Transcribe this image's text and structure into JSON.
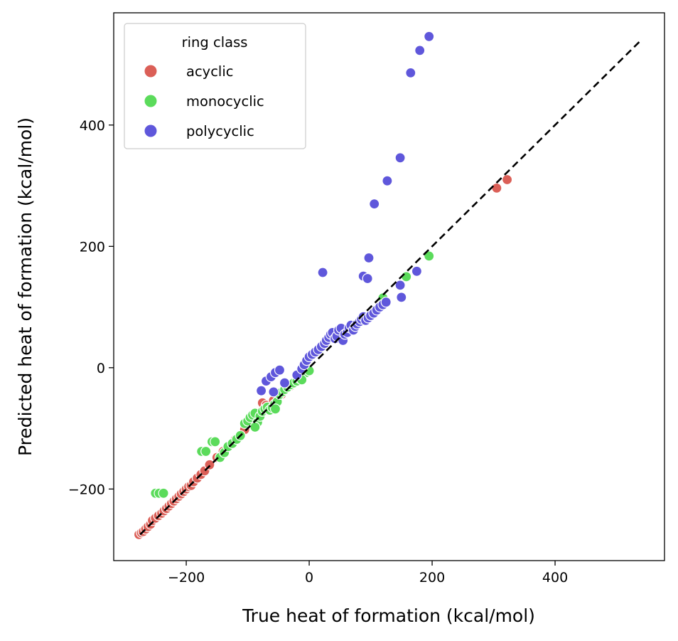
{
  "chart_data": {
    "type": "scatter",
    "xlabel": "True heat of formation (kcal/mol)",
    "ylabel": "Predicted heat of formation (kcal/mol)",
    "xlim": [
      -318,
      578
    ],
    "ylim": [
      -318,
      585
    ],
    "xticks": [
      -200,
      0,
      200,
      400
    ],
    "yticks": [
      -200,
      0,
      200,
      400
    ],
    "xtick_labels": [
      "−200",
      "0",
      "200",
      "400"
    ],
    "ytick_labels": [
      "−200",
      "0",
      "200",
      "400"
    ],
    "grid": false,
    "legend": {
      "title": "ring class",
      "position": "top-left"
    },
    "reference_line": {
      "style": "dashed",
      "color": "#000000",
      "x": [
        -275,
        540
      ],
      "y": [
        -275,
        540
      ]
    },
    "series": [
      {
        "name": "acyclic",
        "color": "#db5f57",
        "points": [
          [
            -277,
            -275
          ],
          [
            -273,
            -272
          ],
          [
            -270,
            -270
          ],
          [
            -266,
            -266
          ],
          [
            -262,
            -262
          ],
          [
            -258,
            -258
          ],
          [
            -255,
            -252
          ],
          [
            -250,
            -248
          ],
          [
            -245,
            -244
          ],
          [
            -240,
            -240
          ],
          [
            -236,
            -236
          ],
          [
            -232,
            -232
          ],
          [
            -228,
            -228
          ],
          [
            -224,
            -224
          ],
          [
            -220,
            -220
          ],
          [
            -216,
            -216
          ],
          [
            -212,
            -212
          ],
          [
            -208,
            -208
          ],
          [
            -204,
            -204
          ],
          [
            -200,
            -200
          ],
          [
            -196,
            -196
          ],
          [
            -192,
            -194
          ],
          [
            -188,
            -188
          ],
          [
            -182,
            -182
          ],
          [
            -176,
            -176
          ],
          [
            -170,
            -170
          ],
          [
            -162,
            -160
          ],
          [
            -150,
            -148
          ],
          [
            -140,
            -138
          ],
          [
            -132,
            -130
          ],
          [
            -120,
            -118
          ],
          [
            -105,
            -102
          ],
          [
            -95,
            -92
          ],
          [
            -82,
            -78
          ],
          [
            -76,
            -58
          ],
          [
            -70,
            -62
          ],
          [
            -58,
            -54
          ],
          [
            -45,
            -44
          ],
          [
            -30,
            -30
          ],
          [
            -15,
            -15
          ],
          [
            -5,
            -5
          ],
          [
            305,
            296
          ],
          [
            322,
            310
          ]
        ]
      },
      {
        "name": "monocyclic",
        "color": "#5bdb5b",
        "points": [
          [
            -250,
            -207
          ],
          [
            -244,
            -207
          ],
          [
            -237,
            -207
          ],
          [
            -175,
            -138
          ],
          [
            -168,
            -138
          ],
          [
            -158,
            -122
          ],
          [
            -153,
            -122
          ],
          [
            -145,
            -148
          ],
          [
            -138,
            -140
          ],
          [
            -132,
            -130
          ],
          [
            -125,
            -125
          ],
          [
            -118,
            -118
          ],
          [
            -112,
            -112
          ],
          [
            -105,
            -92
          ],
          [
            -100,
            -88
          ],
          [
            -96,
            -82
          ],
          [
            -92,
            -78
          ],
          [
            -88,
            -75
          ],
          [
            -84,
            -90
          ],
          [
            -80,
            -80
          ],
          [
            -76,
            -72
          ],
          [
            -72,
            -68
          ],
          [
            -68,
            -65
          ],
          [
            -64,
            -70
          ],
          [
            -60,
            -66
          ],
          [
            -56,
            -60
          ],
          [
            -52,
            -56
          ],
          [
            -48,
            -44
          ],
          [
            -44,
            -40
          ],
          [
            -40,
            -36
          ],
          [
            -35,
            -32
          ],
          [
            -30,
            -28
          ],
          [
            -25,
            -25
          ],
          [
            -20,
            -22
          ],
          [
            -15,
            -18
          ],
          [
            -10,
            -12
          ],
          [
            -5,
            -8
          ],
          [
            0,
            -5
          ],
          [
            -88,
            -98
          ],
          [
            -55,
            -68
          ],
          [
            -12,
            -20
          ],
          [
            120,
            115
          ],
          [
            158,
            150
          ],
          [
            195,
            184
          ]
        ]
      },
      {
        "name": "polycyclic",
        "color": "#5f57db",
        "points": [
          [
            -78,
            -38
          ],
          [
            -70,
            -22
          ],
          [
            -62,
            -15
          ],
          [
            -55,
            -8
          ],
          [
            -48,
            -4
          ],
          [
            -58,
            -40
          ],
          [
            -40,
            -25
          ],
          [
            -20,
            -12
          ],
          [
            -12,
            -2
          ],
          [
            -8,
            5
          ],
          [
            -4,
            12
          ],
          [
            0,
            18
          ],
          [
            5,
            22
          ],
          [
            10,
            26
          ],
          [
            15,
            30
          ],
          [
            20,
            35
          ],
          [
            25,
            40
          ],
          [
            28,
            45
          ],
          [
            32,
            50
          ],
          [
            35,
            55
          ],
          [
            38,
            58
          ],
          [
            42,
            48
          ],
          [
            45,
            52
          ],
          [
            48,
            62
          ],
          [
            52,
            65
          ],
          [
            55,
            45
          ],
          [
            58,
            55
          ],
          [
            62,
            58
          ],
          [
            65,
            66
          ],
          [
            68,
            70
          ],
          [
            72,
            62
          ],
          [
            75,
            68
          ],
          [
            78,
            72
          ],
          [
            82,
            76
          ],
          [
            85,
            80
          ],
          [
            88,
            84
          ],
          [
            92,
            78
          ],
          [
            96,
            82
          ],
          [
            100,
            86
          ],
          [
            105,
            90
          ],
          [
            110,
            95
          ],
          [
            115,
            100
          ],
          [
            120,
            104
          ],
          [
            125,
            108
          ],
          [
            22,
            157
          ],
          [
            88,
            151
          ],
          [
            95,
            147
          ],
          [
            97,
            181
          ],
          [
            106,
            270
          ],
          [
            127,
            308
          ],
          [
            148,
            346
          ],
          [
            150,
            116
          ],
          [
            148,
            136
          ],
          [
            175,
            159
          ],
          [
            165,
            486
          ],
          [
            180,
            523
          ],
          [
            195,
            546
          ]
        ]
      }
    ]
  }
}
